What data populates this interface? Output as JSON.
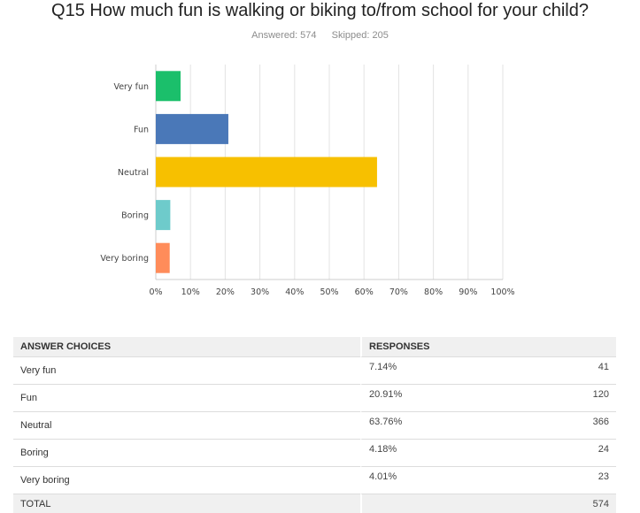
{
  "question": {
    "title": "Q15 How much fun is walking or biking to/from school for your child?",
    "answered": "Answered: 574",
    "skipped": "Skipped: 205"
  },
  "chart_data": {
    "type": "bar",
    "orientation": "horizontal",
    "categories": [
      "Very fun",
      "Fun",
      "Neutral",
      "Boring",
      "Very boring"
    ],
    "values": [
      7.14,
      20.91,
      63.76,
      4.18,
      4.01
    ],
    "colors": [
      "#1bbf6b",
      "#4a78b8",
      "#f7c000",
      "#6ecbcb",
      "#ff8c5a"
    ],
    "xlim": [
      0,
      100
    ],
    "xticks": [
      "0%",
      "10%",
      "20%",
      "30%",
      "40%",
      "50%",
      "60%",
      "70%",
      "80%",
      "90%",
      "100%"
    ],
    "grid": true
  },
  "table": {
    "headers": [
      "ANSWER CHOICES",
      "RESPONSES"
    ],
    "rows": [
      {
        "choice": "Very fun",
        "percent": "7.14%",
        "count": "41"
      },
      {
        "choice": "Fun",
        "percent": "20.91%",
        "count": "120"
      },
      {
        "choice": "Neutral",
        "percent": "63.76%",
        "count": "366"
      },
      {
        "choice": "Boring",
        "percent": "4.18%",
        "count": "24"
      },
      {
        "choice": "Very boring",
        "percent": "4.01%",
        "count": "23"
      }
    ],
    "total_label": "TOTAL",
    "total_count": "574"
  }
}
